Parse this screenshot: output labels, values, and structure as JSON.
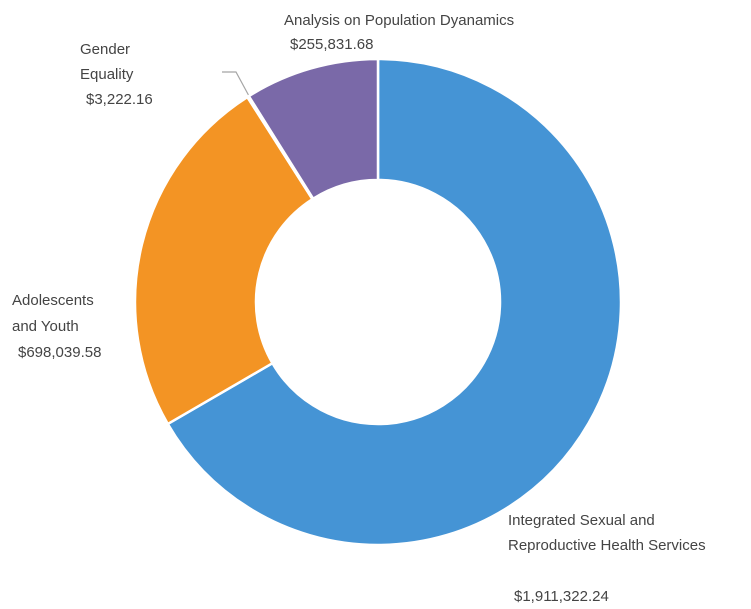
{
  "chart_data": {
    "type": "donut",
    "categories": [
      "Integrated Sexual and Reproductive Health Services",
      "Adolescents and Youth",
      "Gender Equality",
      "Analysis on Population Dyanamics"
    ],
    "values": [
      1911322.24,
      698039.58,
      3222.16,
      255831.68
    ],
    "value_labels": [
      "$1,911,322.24",
      "$698,039.58",
      "$3,222.16",
      "$255,831.68"
    ],
    "colors": [
      "#4594d5",
      "#f39424",
      "#a5a5a5",
      "#7a69a8"
    ]
  }
}
